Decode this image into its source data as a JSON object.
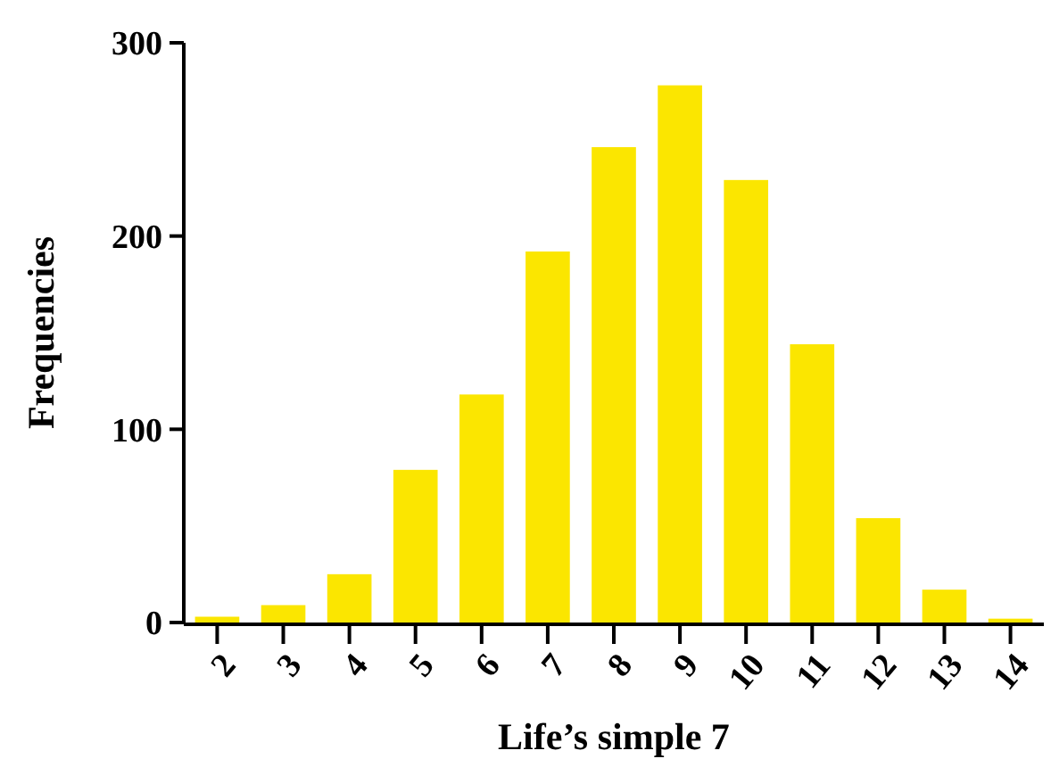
{
  "chart_data": {
    "type": "bar",
    "xlabel": "Life’s simple 7",
    "ylabel": "Frequencies",
    "categories": [
      "2",
      "3",
      "4",
      "5",
      "6",
      "7",
      "8",
      "9",
      "10",
      "11",
      "12",
      "13",
      "14"
    ],
    "values": [
      3,
      9,
      25,
      79,
      118,
      192,
      246,
      278,
      229,
      144,
      54,
      17,
      2
    ],
    "color": "#fbe600",
    "ylim": [
      0,
      300
    ],
    "yticks": [
      0,
      100,
      200,
      300
    ]
  }
}
